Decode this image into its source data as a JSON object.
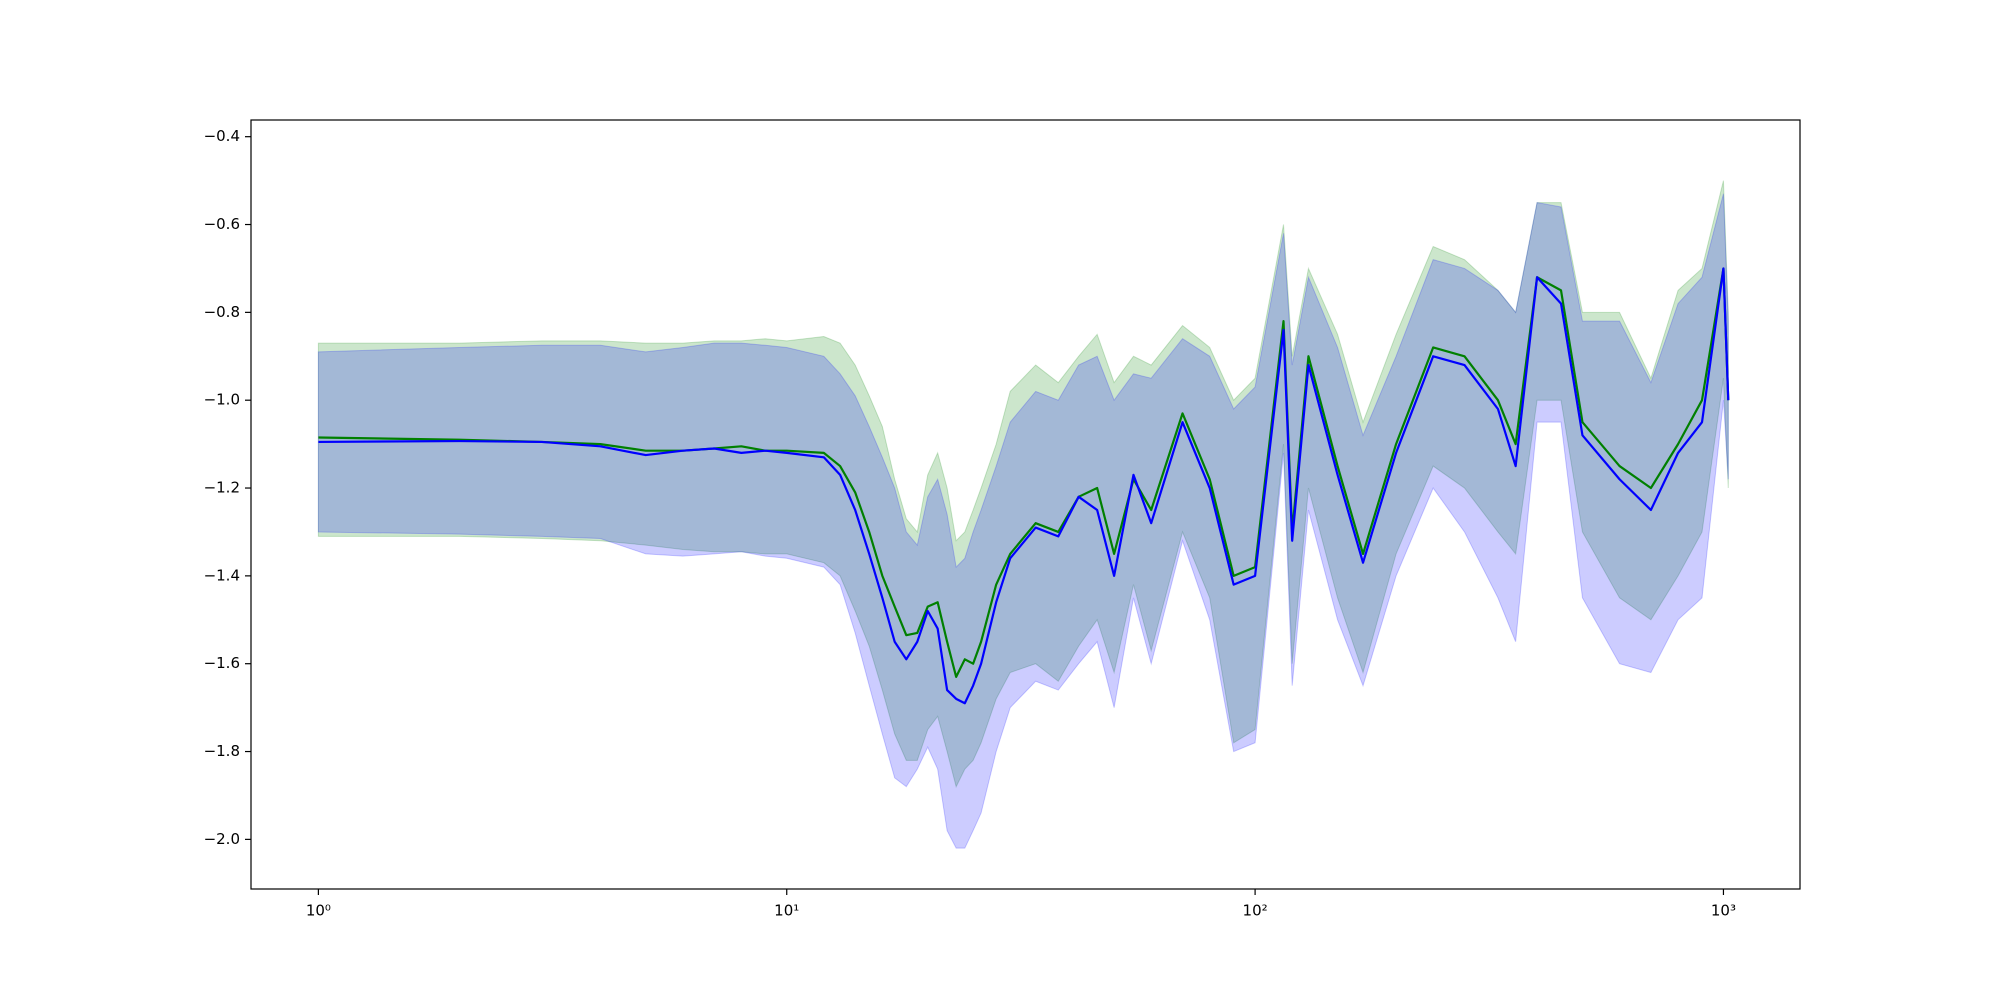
{
  "chart_data": {
    "type": "line",
    "xscale": "log",
    "x": [
      1,
      2,
      3,
      4,
      5,
      6,
      7,
      8,
      9,
      10,
      12,
      13,
      14,
      15,
      16,
      17,
      18,
      19,
      20,
      21,
      22,
      23,
      24,
      25,
      26,
      28,
      30,
      34,
      38,
      42,
      46,
      50,
      55,
      60,
      70,
      80,
      90,
      100,
      115,
      120,
      130,
      150,
      170,
      200,
      240,
      280,
      330,
      360,
      400,
      450,
      500,
      600,
      700,
      800,
      900,
      1000,
      1024
    ],
    "series": [
      {
        "color": "#008000",
        "band_alpha": 0.2,
        "values": [
          -1.085,
          -1.09,
          -1.095,
          -1.1,
          -1.115,
          -1.115,
          -1.11,
          -1.105,
          -1.115,
          -1.115,
          -1.12,
          -1.15,
          -1.21,
          -1.3,
          -1.4,
          -1.47,
          -1.535,
          -1.53,
          -1.47,
          -1.46,
          -1.55,
          -1.63,
          -1.59,
          -1.6,
          -1.55,
          -1.42,
          -1.35,
          -1.28,
          -1.3,
          -1.22,
          -1.2,
          -1.35,
          -1.18,
          -1.25,
          -1.03,
          -1.18,
          -1.4,
          -1.38,
          -0.82,
          -1.3,
          -0.9,
          -1.15,
          -1.35,
          -1.1,
          -0.88,
          -0.9,
          -1.0,
          -1.1,
          -0.72,
          -0.75,
          -1.05,
          -1.15,
          -1.2,
          -1.1,
          -1.0,
          -0.7,
          -1.0
        ],
        "upper": [
          -0.87,
          -0.87,
          -0.865,
          -0.865,
          -0.87,
          -0.87,
          -0.865,
          -0.865,
          -0.86,
          -0.865,
          -0.855,
          -0.87,
          -0.92,
          -0.99,
          -1.06,
          -1.18,
          -1.27,
          -1.3,
          -1.17,
          -1.12,
          -1.2,
          -1.32,
          -1.3,
          -1.25,
          -1.2,
          -1.1,
          -0.98,
          -0.92,
          -0.96,
          -0.9,
          -0.85,
          -0.96,
          -0.9,
          -0.92,
          -0.83,
          -0.88,
          -1.0,
          -0.95,
          -0.6,
          -0.9,
          -0.7,
          -0.85,
          -1.05,
          -0.85,
          -0.65,
          -0.68,
          -0.75,
          -0.8,
          -0.55,
          -0.55,
          -0.8,
          -0.8,
          -0.95,
          -0.75,
          -0.7,
          -0.5,
          -0.8
        ],
        "lower": [
          -1.31,
          -1.31,
          -1.315,
          -1.32,
          -1.33,
          -1.34,
          -1.345,
          -1.345,
          -1.35,
          -1.35,
          -1.37,
          -1.4,
          -1.48,
          -1.56,
          -1.66,
          -1.76,
          -1.82,
          -1.82,
          -1.75,
          -1.72,
          -1.8,
          -1.88,
          -1.84,
          -1.82,
          -1.78,
          -1.68,
          -1.62,
          -1.6,
          -1.64,
          -1.56,
          -1.5,
          -1.62,
          -1.42,
          -1.57,
          -1.3,
          -1.45,
          -1.78,
          -1.75,
          -1.1,
          -1.6,
          -1.2,
          -1.45,
          -1.62,
          -1.35,
          -1.15,
          -1.2,
          -1.3,
          -1.35,
          -1.0,
          -1.0,
          -1.3,
          -1.45,
          -1.5,
          -1.4,
          -1.3,
          -0.95,
          -1.2
        ]
      },
      {
        "color": "#0000ff",
        "band_alpha": 0.2,
        "values": [
          -1.095,
          -1.093,
          -1.095,
          -1.105,
          -1.125,
          -1.115,
          -1.11,
          -1.12,
          -1.115,
          -1.12,
          -1.13,
          -1.17,
          -1.25,
          -1.35,
          -1.45,
          -1.55,
          -1.59,
          -1.55,
          -1.48,
          -1.52,
          -1.66,
          -1.68,
          -1.69,
          -1.65,
          -1.6,
          -1.46,
          -1.36,
          -1.29,
          -1.31,
          -1.22,
          -1.25,
          -1.4,
          -1.17,
          -1.28,
          -1.05,
          -1.2,
          -1.42,
          -1.4,
          -0.84,
          -1.32,
          -0.92,
          -1.17,
          -1.37,
          -1.12,
          -0.9,
          -0.92,
          -1.02,
          -1.15,
          -0.72,
          -0.78,
          -1.08,
          -1.18,
          -1.25,
          -1.12,
          -1.05,
          -0.7,
          -1.0
        ],
        "upper": [
          -0.89,
          -0.88,
          -0.875,
          -0.875,
          -0.89,
          -0.88,
          -0.87,
          -0.87,
          -0.875,
          -0.88,
          -0.9,
          -0.94,
          -0.99,
          -1.06,
          -1.13,
          -1.2,
          -1.3,
          -1.33,
          -1.22,
          -1.18,
          -1.26,
          -1.38,
          -1.36,
          -1.3,
          -1.25,
          -1.15,
          -1.05,
          -0.98,
          -1.0,
          -0.92,
          -0.9,
          -1.0,
          -0.94,
          -0.95,
          -0.86,
          -0.9,
          -1.02,
          -0.97,
          -0.62,
          -0.92,
          -0.72,
          -0.88,
          -1.08,
          -0.9,
          -0.68,
          -0.7,
          -0.75,
          -0.8,
          -0.55,
          -0.56,
          -0.82,
          -0.82,
          -0.96,
          -0.78,
          -0.72,
          -0.53,
          -0.82
        ],
        "lower": [
          -1.3,
          -1.305,
          -1.31,
          -1.315,
          -1.35,
          -1.355,
          -1.35,
          -1.345,
          -1.355,
          -1.36,
          -1.38,
          -1.42,
          -1.53,
          -1.65,
          -1.76,
          -1.86,
          -1.88,
          -1.84,
          -1.79,
          -1.84,
          -1.98,
          -2.02,
          -2.02,
          -1.98,
          -1.94,
          -1.8,
          -1.7,
          -1.64,
          -1.66,
          -1.6,
          -1.55,
          -1.7,
          -1.45,
          -1.6,
          -1.32,
          -1.5,
          -1.8,
          -1.78,
          -1.12,
          -1.65,
          -1.25,
          -1.5,
          -1.65,
          -1.4,
          -1.2,
          -1.3,
          -1.45,
          -1.55,
          -1.05,
          -1.05,
          -1.45,
          -1.6,
          -1.62,
          -1.5,
          -1.45,
          -1.0,
          -1.18
        ]
      }
    ],
    "xlim": [
      0.718,
      1457
    ],
    "xticks": [
      {
        "value": 1,
        "label": "10⁰"
      },
      {
        "value": 10,
        "label": "10¹"
      },
      {
        "value": 100,
        "label": "10²"
      },
      {
        "value": 1000,
        "label": "10³"
      }
    ],
    "ylim": [
      -2.113,
      -0.362
    ],
    "yticks": [
      {
        "value": -2.0,
        "label": "−2.0"
      },
      {
        "value": -1.8,
        "label": "−1.8"
      },
      {
        "value": -1.6,
        "label": "−1.6"
      },
      {
        "value": -1.4,
        "label": "−1.4"
      },
      {
        "value": -1.2,
        "label": "−1.2"
      },
      {
        "value": -1.0,
        "label": "−1.0"
      },
      {
        "value": -0.8,
        "label": "−0.8"
      },
      {
        "value": -0.6,
        "label": "−0.6"
      },
      {
        "value": -0.4,
        "label": "−0.4"
      }
    ],
    "grid": false
  }
}
